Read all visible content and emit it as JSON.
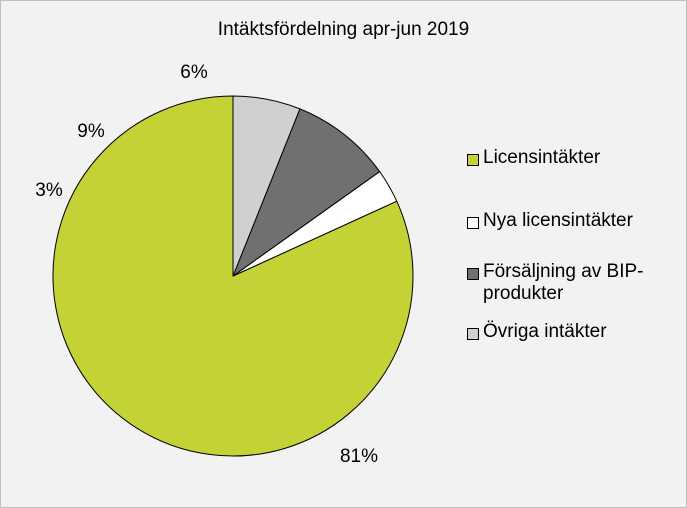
{
  "chart_data": {
    "type": "pie",
    "title": "Intäktsfördelning apr-jun 2019",
    "start_angle_deg": 0,
    "direction": "counterclockwise",
    "slices": [
      {
        "label": "Licensintäkter",
        "value": 81,
        "value_label": "81%",
        "color": "#c4d235"
      },
      {
        "label": "Nya licensintäkter",
        "value": 3,
        "value_label": "3%",
        "color": "#ffffff"
      },
      {
        "label": "Försäljning av BIP-produkter",
        "value": 9,
        "value_label": "9%",
        "color": "#707070"
      },
      {
        "label": "Övriga intäkter",
        "value": 6,
        "value_label": "6%",
        "color": "#d0d0d0"
      }
    ],
    "legend": {
      "placement": "right",
      "entries": [
        "Licensintäkter",
        "Nya licensintäkter",
        "Försäljning av BIP-produkter",
        "Övriga intäkter"
      ]
    }
  }
}
